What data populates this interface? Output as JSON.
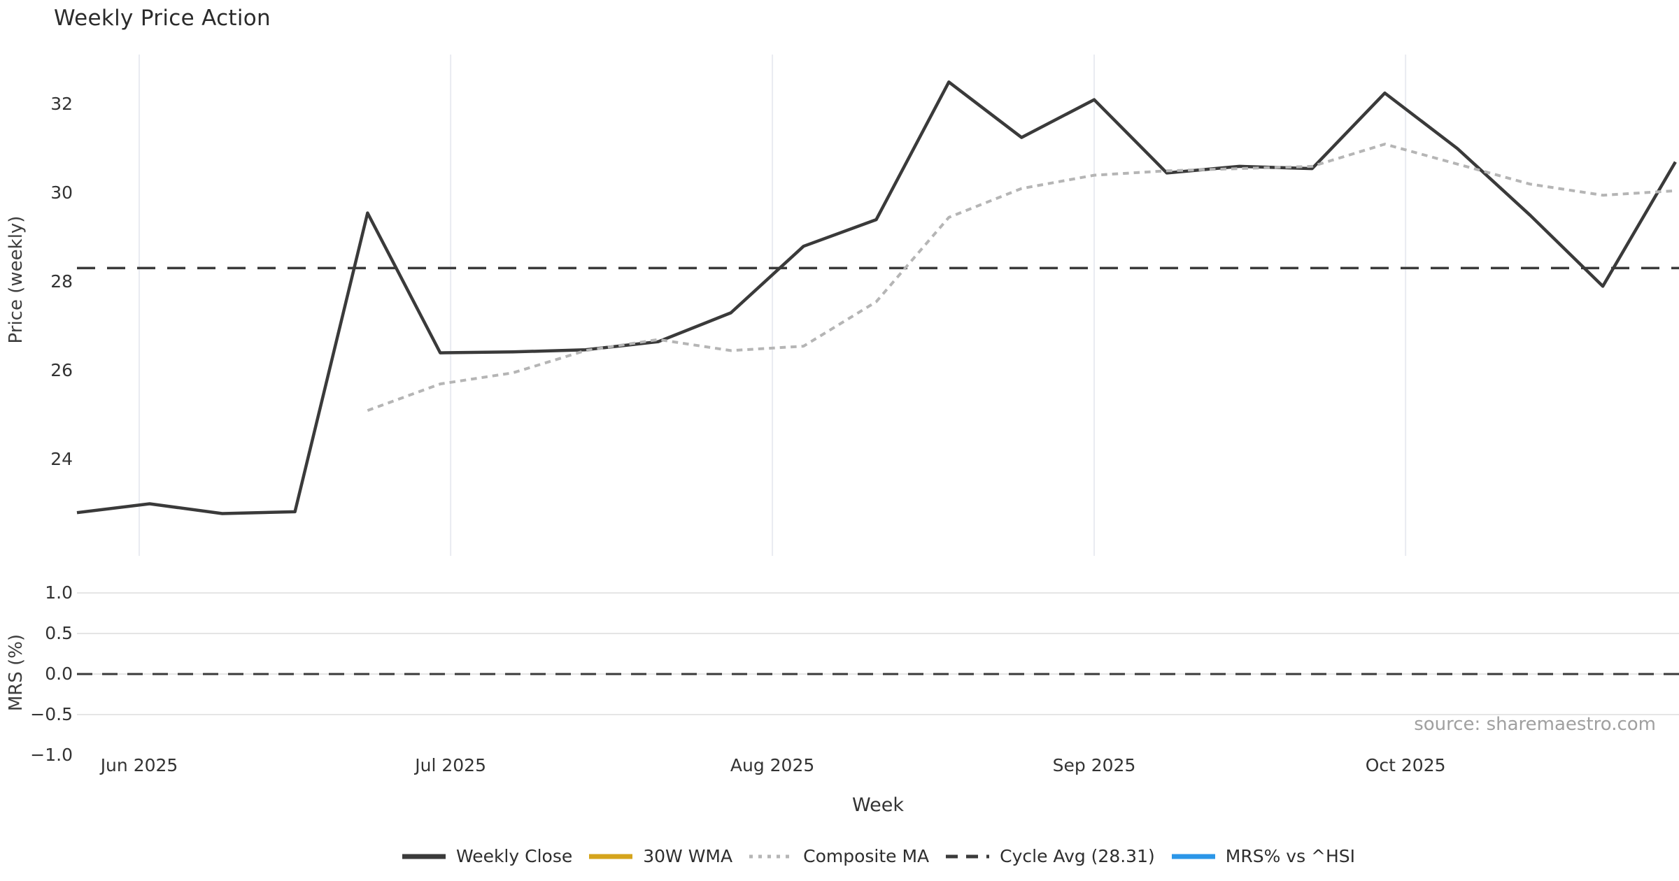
{
  "title": "Weekly Price Action",
  "source_note": "source: sharemaestro.com",
  "colors": {
    "weekly_close": "#3a3a3a",
    "wma_30w": "#d5a41c",
    "composite_ma": "#b5b5b5",
    "cycle_avg": "#3a3a3a",
    "mrs": "#2b96e8",
    "gridline_vertical": "#e9ebf1",
    "gridline_horizontal": "#e5e5e5",
    "tick_text": "#333333",
    "source_text": "#a0a0a0"
  },
  "legend": {
    "items": [
      {
        "label": "Weekly Close",
        "color": "#3a3a3a",
        "style": "solid",
        "stroke_width": 7
      },
      {
        "label": "30W WMA",
        "color": "#d5a41c",
        "style": "solid",
        "stroke_width": 7
      },
      {
        "label": "Composite MA",
        "color": "#b5b5b5",
        "style": "dotted",
        "stroke_width": 5
      },
      {
        "label": "Cycle Avg (28.31)",
        "color": "#3a3a3a",
        "style": "dashed",
        "stroke_width": 5
      },
      {
        "label": "MRS% vs ^HSI",
        "color": "#2b96e8",
        "style": "solid",
        "stroke_width": 7
      }
    ]
  },
  "chart_data": [
    {
      "type": "line",
      "panel": "price",
      "title": "Weekly Price Action",
      "xlabel": "Week",
      "ylabel": "Price (weekly)",
      "ylim": [
        21.8,
        33.1
      ],
      "yticks": [
        24,
        26,
        28,
        30,
        32
      ],
      "ytick_labels": [
        "24",
        "26",
        "28",
        "30",
        "32"
      ],
      "grid": "vertical-months-only",
      "month_ticks": [
        {
          "date": "2025-06-01",
          "label": "Jun 2025"
        },
        {
          "date": "2025-07-01",
          "label": "Jul 2025"
        },
        {
          "date": "2025-08-01",
          "label": "Aug 2025"
        },
        {
          "date": "2025-09-01",
          "label": "Sep 2025"
        },
        {
          "date": "2025-10-01",
          "label": "Oct 2025"
        }
      ],
      "x": [
        "2025-05-26",
        "2025-06-02",
        "2025-06-09",
        "2025-06-16",
        "2025-06-23",
        "2025-06-30",
        "2025-07-07",
        "2025-07-14",
        "2025-07-21",
        "2025-07-28",
        "2025-08-04",
        "2025-08-11",
        "2025-08-18",
        "2025-08-25",
        "2025-09-01",
        "2025-09-08",
        "2025-09-15",
        "2025-09-22",
        "2025-09-29",
        "2025-10-06",
        "2025-10-13",
        "2025-10-20",
        "2025-10-27"
      ],
      "series": [
        {
          "name": "Weekly Close",
          "style": "solid",
          "color": "#3a3a3a",
          "stroke_width": 4.5,
          "values": [
            22.8,
            23.0,
            22.78,
            22.82,
            29.55,
            26.4,
            26.42,
            26.47,
            26.65,
            27.3,
            28.8,
            29.4,
            32.5,
            31.25,
            32.1,
            30.45,
            30.6,
            30.55,
            32.25,
            31.0,
            29.5,
            27.9,
            30.7
          ]
        },
        {
          "name": "Composite MA",
          "style": "dotted",
          "color": "#b5b5b5",
          "stroke_width": 4,
          "values": [
            null,
            null,
            null,
            null,
            25.1,
            25.7,
            25.95,
            26.45,
            26.7,
            26.45,
            26.55,
            27.55,
            29.45,
            30.1,
            30.4,
            30.5,
            30.55,
            30.6,
            31.1,
            30.65,
            30.2,
            29.95,
            30.05
          ]
        },
        {
          "name": "30W WMA",
          "style": "solid",
          "color": "#d5a41c",
          "stroke_width": 4,
          "visible_in_plot": false,
          "values": []
        }
      ],
      "reference_line": {
        "name": "Cycle Avg",
        "value": 28.31,
        "style": "dashed",
        "color": "#3a3a3a"
      }
    },
    {
      "type": "line",
      "panel": "mrs",
      "ylabel": "MRS (%)",
      "ylim": [
        -1.07,
        1.07
      ],
      "yticks": [
        1.0,
        0.5,
        0.0,
        -0.5,
        -1.0
      ],
      "ytick_labels": [
        "1.0",
        "0.5",
        "0.0",
        "−0.5",
        "−1.0"
      ],
      "grid": "horizontal-only",
      "gridline_values": [
        1.0,
        0.5,
        0.0,
        -0.5
      ],
      "reference_line": {
        "name": "zero",
        "value": 0.0,
        "style": "dashed",
        "color": "#3a3a3a"
      },
      "series": []
    }
  ]
}
